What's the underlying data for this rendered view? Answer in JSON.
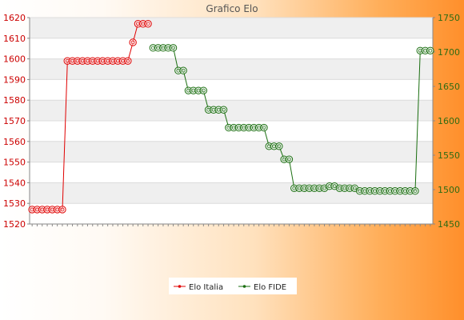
{
  "chart_data": {
    "type": "line",
    "title": "Grafico Elo",
    "xlabel": "",
    "ylabel": "",
    "x_count": 80,
    "legend_position": "bottom-center",
    "grid": true,
    "y_left": {
      "min": 1520,
      "max": 1620,
      "ticks": [
        1520,
        1530,
        1540,
        1550,
        1560,
        1570,
        1580,
        1590,
        1600,
        1610,
        1620
      ]
    },
    "y_right": {
      "min": 1450,
      "max": 1750,
      "ticks": [
        1450,
        1500,
        1550,
        1600,
        1650,
        1700,
        1750
      ]
    },
    "series": [
      {
        "name": "Elo Italia",
        "color": "#e00000",
        "axis": "left",
        "points": [
          [
            0,
            1527
          ],
          [
            1,
            1527
          ],
          [
            2,
            1527
          ],
          [
            3,
            1527
          ],
          [
            4,
            1527
          ],
          [
            5,
            1527
          ],
          [
            6,
            1527
          ],
          [
            7,
            1599
          ],
          [
            8,
            1599
          ],
          [
            9,
            1599
          ],
          [
            10,
            1599
          ],
          [
            11,
            1599
          ],
          [
            12,
            1599
          ],
          [
            13,
            1599
          ],
          [
            14,
            1599
          ],
          [
            15,
            1599
          ],
          [
            16,
            1599
          ],
          [
            17,
            1599
          ],
          [
            18,
            1599
          ],
          [
            19,
            1599
          ],
          [
            20,
            1608
          ],
          [
            21,
            1617
          ],
          [
            22,
            1617
          ],
          [
            23,
            1617
          ]
        ]
      },
      {
        "name": "Elo FIDE",
        "color": "#1a6e10",
        "axis": "right",
        "points": [
          [
            24,
            1706
          ],
          [
            25,
            1706
          ],
          [
            26,
            1706
          ],
          [
            27,
            1706
          ],
          [
            28,
            1706
          ],
          [
            29,
            1673
          ],
          [
            30,
            1673
          ],
          [
            31,
            1644
          ],
          [
            32,
            1644
          ],
          [
            33,
            1644
          ],
          [
            34,
            1644
          ],
          [
            35,
            1616
          ],
          [
            36,
            1616
          ],
          [
            37,
            1616
          ],
          [
            38,
            1616
          ],
          [
            39,
            1590
          ],
          [
            40,
            1590
          ],
          [
            41,
            1590
          ],
          [
            42,
            1590
          ],
          [
            43,
            1590
          ],
          [
            44,
            1590
          ],
          [
            45,
            1590
          ],
          [
            46,
            1590
          ],
          [
            47,
            1563
          ],
          [
            48,
            1563
          ],
          [
            49,
            1563
          ],
          [
            50,
            1544
          ],
          [
            51,
            1544
          ],
          [
            52,
            1502
          ],
          [
            53,
            1502
          ],
          [
            54,
            1502
          ],
          [
            55,
            1502
          ],
          [
            56,
            1502
          ],
          [
            57,
            1502
          ],
          [
            58,
            1502
          ],
          [
            59,
            1505
          ],
          [
            60,
            1505
          ],
          [
            61,
            1502
          ],
          [
            62,
            1502
          ],
          [
            63,
            1502
          ],
          [
            64,
            1502
          ],
          [
            65,
            1498
          ],
          [
            66,
            1498
          ],
          [
            67,
            1498
          ],
          [
            68,
            1498
          ],
          [
            69,
            1498
          ],
          [
            70,
            1498
          ],
          [
            71,
            1498
          ],
          [
            72,
            1498
          ],
          [
            73,
            1498
          ],
          [
            74,
            1498
          ],
          [
            75,
            1498
          ],
          [
            76,
            1498
          ],
          [
            77,
            1702
          ],
          [
            78,
            1702
          ],
          [
            79,
            1702
          ]
        ]
      }
    ]
  }
}
